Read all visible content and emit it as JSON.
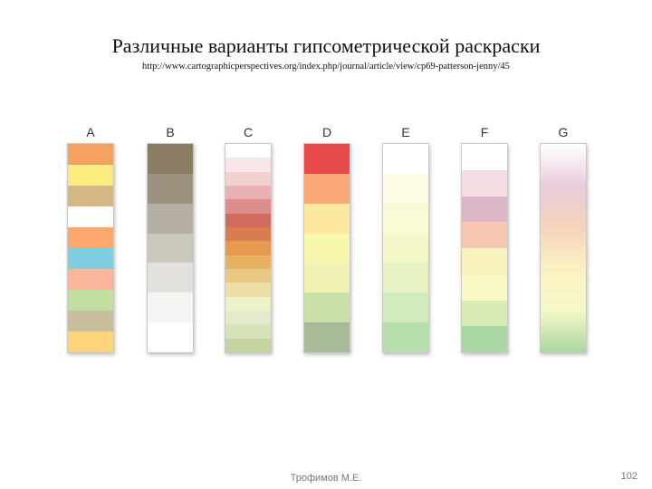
{
  "title": "Различные варианты гипсометрической раскраски",
  "url": "http://www.cartographicperspectives.org/index.php/journal/article/view/cp69-patterson-jenny/45",
  "columns": [
    {
      "label": "A",
      "bands": [
        "#f5a260",
        "#fbec82",
        "#d6b886",
        "#ffffff",
        "#fba76d",
        "#7fcfe0",
        "#f9b69a",
        "#c2dda0",
        "#c7be9d",
        "#fed57c"
      ]
    },
    {
      "label": "B",
      "bands": [
        "#8a7d63",
        "#9b937f",
        "#b4afa0",
        "#cbc7bd",
        "#e3e1dc",
        "#f4f4f2",
        "#ffffff"
      ]
    },
    {
      "label": "C",
      "bands": [
        "#ffffff",
        "#f7e6e6",
        "#f1d0d0",
        "#e8b1b3",
        "#dc8e8e",
        "#cf6c5f",
        "#da7c50",
        "#e49a4f",
        "#e6b262",
        "#e7c983",
        "#eedfa9",
        "#eef2c9",
        "#e3ebcc",
        "#d7e2bb",
        "#c4d49e"
      ]
    },
    {
      "label": "D",
      "bands": [
        "#e84a4a",
        "#fba677",
        "#fde8a0",
        "#f9f6ae",
        "#eff2b3",
        "#cbdfa8",
        "#a8bb96"
      ]
    },
    {
      "label": "E",
      "bands": [
        "#ffffff",
        "#fdfbe4",
        "#fafad7",
        "#f5f7c9",
        "#e7f2c4",
        "#d1ebbf",
        "#b7dfae"
      ]
    },
    {
      "label": "F",
      "bands": [
        "#ffffff",
        "#f3dde3",
        "#dbb6c9",
        "#f6c6b0",
        "#f8f3bd",
        "#f9f7c3",
        "#d9eab5",
        "#aad7a3"
      ]
    },
    {
      "label": "G",
      "stops": [
        "#ffffff",
        "#e8cddd",
        "#f4d2bc",
        "#fbf2c2",
        "#f5f8c8",
        "#aad7a0"
      ]
    }
  ],
  "footer": {
    "author": "Трофимов М.Е.",
    "page": "102"
  }
}
